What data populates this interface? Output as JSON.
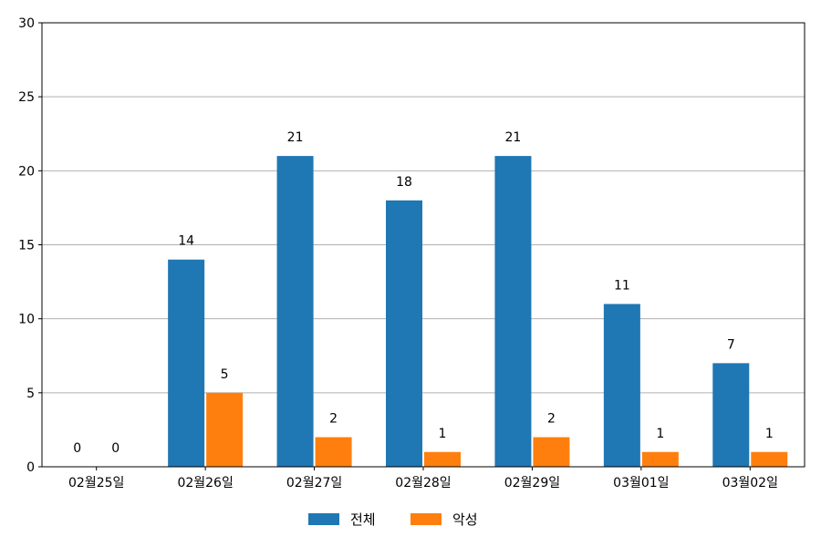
{
  "chart_data": {
    "type": "bar",
    "title": "",
    "xlabel": "",
    "ylabel": "",
    "categories": [
      "02월25일",
      "02월26일",
      "02월27일",
      "02월28일",
      "02월29일",
      "03월01일",
      "03월02일"
    ],
    "series": [
      {
        "name": "전체",
        "values": [
          0,
          14,
          21,
          18,
          21,
          11,
          7
        ],
        "color": "#1f77b4"
      },
      {
        "name": "악성",
        "values": [
          0,
          5,
          2,
          1,
          2,
          1,
          1
        ],
        "color": "#ff7f0e"
      }
    ],
    "ylim": [
      0,
      30
    ],
    "yticks": [
      0,
      5,
      10,
      15,
      20,
      25,
      30
    ],
    "grid": "horizontal",
    "legend_position": "bottom-center",
    "data_labels": true
  }
}
